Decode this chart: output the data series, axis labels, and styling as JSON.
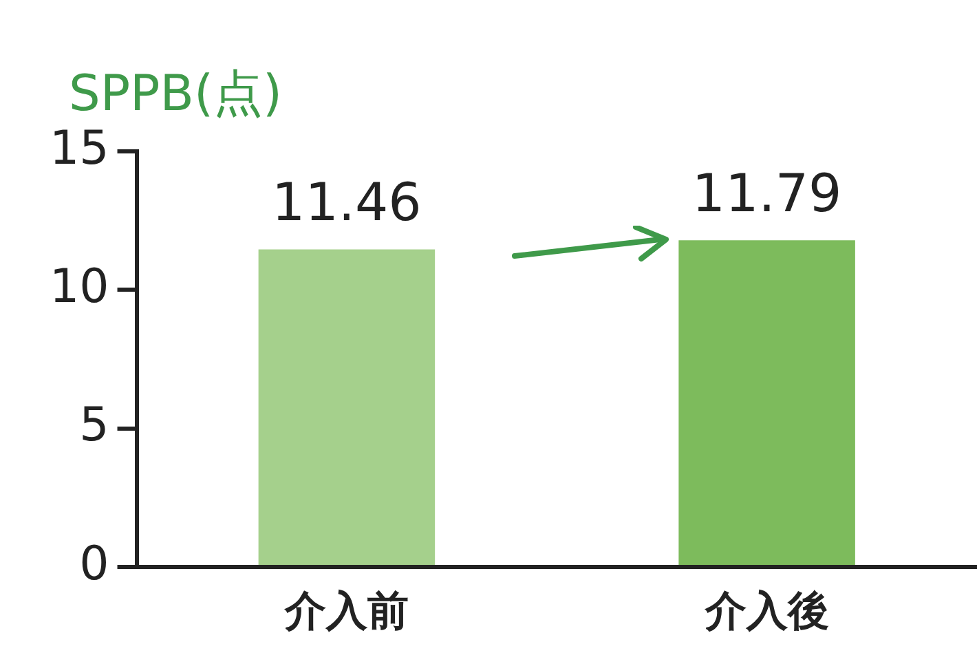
{
  "chart_data": {
    "type": "bar",
    "ylabel": "SPPB(点)",
    "categories": [
      "介入前",
      "介入後"
    ],
    "values": [
      11.46,
      11.79
    ],
    "colors": [
      "#a5d08c",
      "#7dbb5c"
    ],
    "ylim": [
      0,
      15
    ],
    "yticks": [
      0,
      5,
      10,
      15
    ],
    "grid": false,
    "legend": false,
    "data_labels": true
  }
}
